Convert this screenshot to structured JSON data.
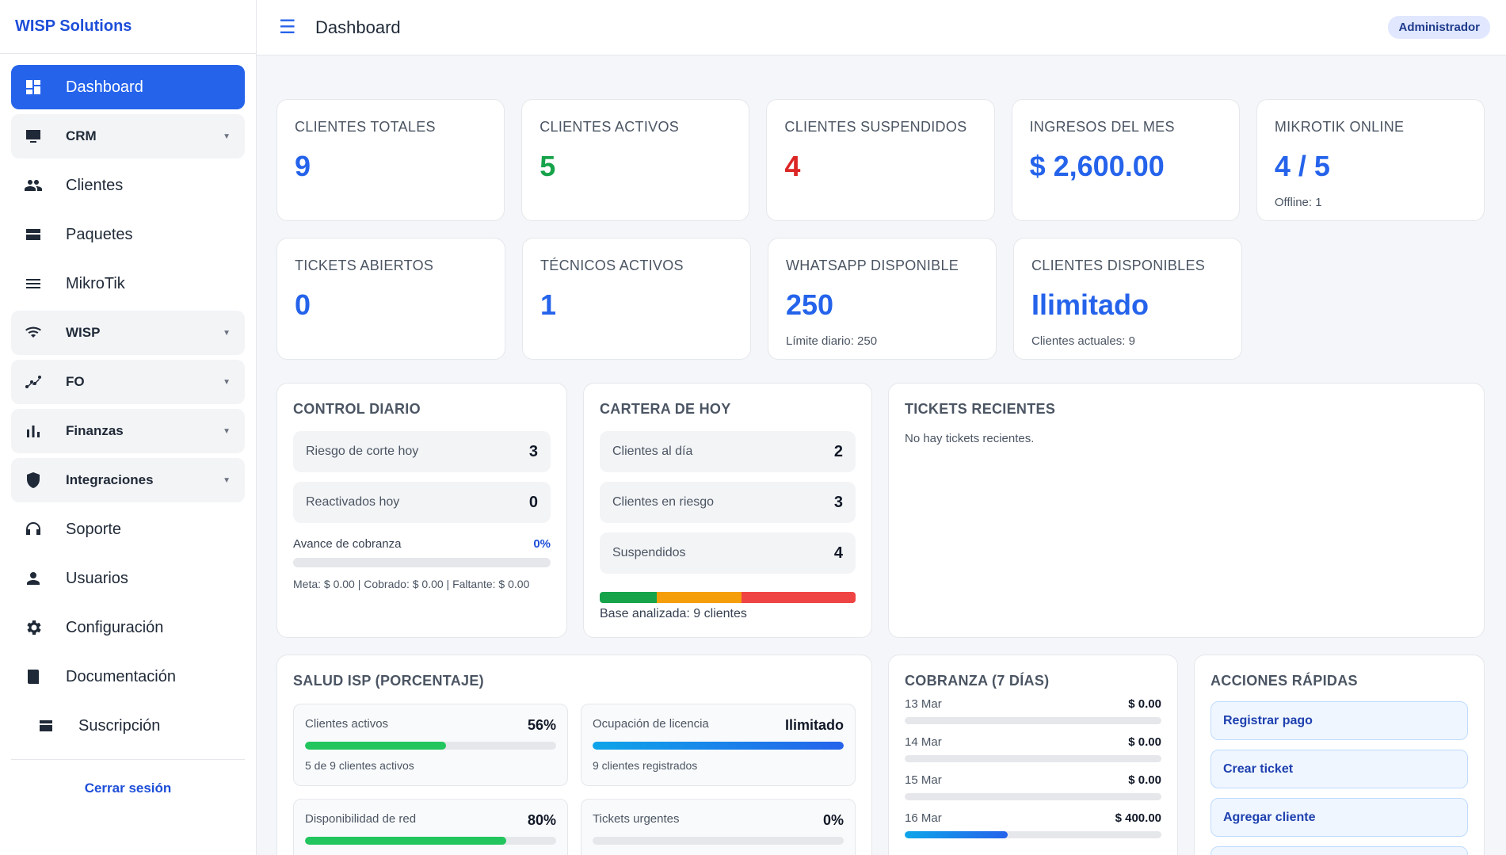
{
  "brand": "WISP Solutions",
  "sidebar": {
    "items": [
      {
        "label": "Dashboard",
        "icon": "dashboard-icon"
      },
      {
        "label": "CRM",
        "icon": "monitor-icon"
      },
      {
        "label": "Clientes",
        "icon": "people-icon"
      },
      {
        "label": "Paquetes",
        "icon": "package-icon"
      },
      {
        "label": "MikroTik",
        "icon": "list-icon"
      },
      {
        "label": "WISP",
        "icon": "wifi-icon"
      },
      {
        "label": "FO",
        "icon": "fiber-icon"
      },
      {
        "label": "Finanzas",
        "icon": "bar-chart-icon"
      },
      {
        "label": "Integraciones",
        "icon": "shield-icon"
      },
      {
        "label": "Soporte",
        "icon": "headset-icon"
      },
      {
        "label": "Usuarios",
        "icon": "user-icon"
      },
      {
        "label": "Configuración",
        "icon": "gear-icon"
      },
      {
        "label": "Documentación",
        "icon": "book-icon"
      },
      {
        "label": "Suscripción",
        "icon": "card-icon"
      }
    ],
    "logout": "Cerrar sesión"
  },
  "header": {
    "title": "Dashboard",
    "role": "Administrador"
  },
  "stats": [
    {
      "label": "CLIENTES TOTALES",
      "value": "9",
      "sub": ""
    },
    {
      "label": "CLIENTES ACTIVOS",
      "value": "5",
      "sub": ""
    },
    {
      "label": "CLIENTES SUSPENDIDOS",
      "value": "4",
      "sub": ""
    },
    {
      "label": "INGRESOS DEL MES",
      "value": "$ 2,600.00",
      "sub": ""
    },
    {
      "label": "MIKROTIK ONLINE",
      "value": "4 / 5",
      "sub": "Offline: 1"
    },
    {
      "label": "TICKETS ABIERTOS",
      "value": "0",
      "sub": ""
    },
    {
      "label": "TÉCNICOS ACTIVOS",
      "value": "1",
      "sub": ""
    },
    {
      "label": "WHATSAPP DISPONIBLE",
      "value": "250",
      "sub": "Límite diario: 250"
    },
    {
      "label": "CLIENTES DISPONIBLES",
      "value": "Ilimitado",
      "sub": "Clientes actuales: 9"
    }
  ],
  "control": {
    "title": "CONTROL DIARIO",
    "rows": [
      {
        "label": "Riesgo de corte hoy",
        "value": "3"
      },
      {
        "label": "Reactivados hoy",
        "value": "0"
      }
    ],
    "progress_label": "Avance de cobranza",
    "progress_pct": "0%",
    "progress_value": 0,
    "summary": "Meta: $ 0.00 | Cobrado: $ 0.00 | Faltante: $ 0.00"
  },
  "cartera": {
    "title": "CARTERA DE HOY",
    "rows": [
      {
        "label": "Clientes al día",
        "value": "2"
      },
      {
        "label": "Clientes en riesgo",
        "value": "3"
      },
      {
        "label": "Suspendidos",
        "value": "4"
      }
    ],
    "base": "Base analizada: 9 clientes"
  },
  "tickets": {
    "title": "TICKETS RECIENTES",
    "empty": "No hay tickets recientes."
  },
  "salud": {
    "title": "SALUD ISP (PORCENTAJE)",
    "items": [
      {
        "label": "Clientes activos",
        "value": "56%",
        "fill": 0.56,
        "note": "5 de 9 clientes activos"
      },
      {
        "label": "Ocupación de licencia",
        "value": "Ilimitado",
        "fill": 1.0,
        "note": "9 clientes registrados"
      },
      {
        "label": "Disponibilidad de red",
        "value": "80%",
        "fill": 0.8,
        "note": ""
      },
      {
        "label": "Tickets urgentes",
        "value": "0%",
        "fill": 0.0,
        "note": ""
      }
    ]
  },
  "cobranza": {
    "title": "COBRANZA (7 DÍAS)",
    "days": [
      {
        "date": "13 Mar",
        "amount": "$ 0.00",
        "fill": 0
      },
      {
        "date": "14 Mar",
        "amount": "$ 0.00",
        "fill": 0
      },
      {
        "date": "15 Mar",
        "amount": "$ 0.00",
        "fill": 0
      },
      {
        "date": "16 Mar",
        "amount": "$ 400.00",
        "fill": 0.4
      }
    ]
  },
  "acciones": {
    "title": "ACCIONES RÁPIDAS",
    "items": [
      "Registrar pago",
      "Crear ticket",
      "Agregar cliente"
    ]
  },
  "colors": {
    "primary": "#2563eb",
    "green": "#16a34a",
    "red": "#dc2626",
    "orange": "#f59e0b"
  }
}
